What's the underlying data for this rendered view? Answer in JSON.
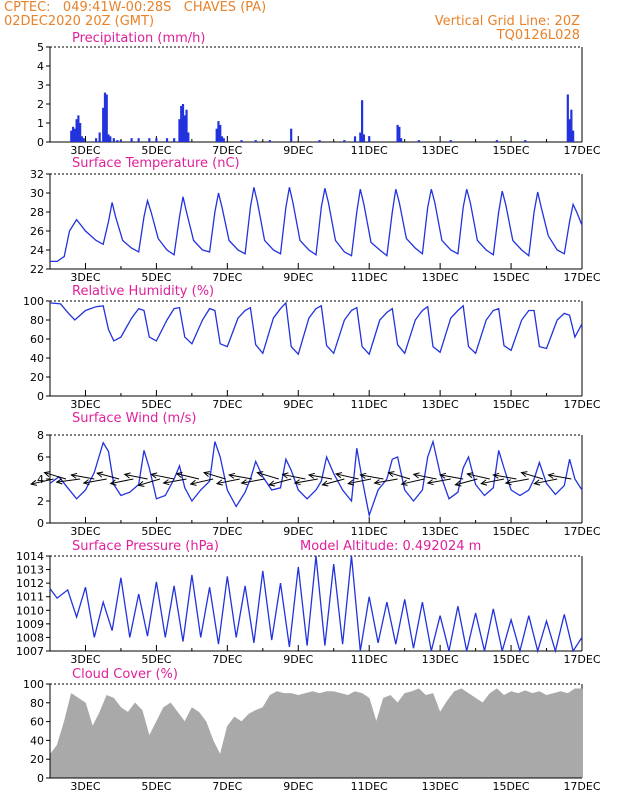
{
  "header": {
    "line1_left": "CPTEC:   049:41W-00:28S   CHAVES (PA)",
    "line2_left": "02DEC2020 20Z (GMT)",
    "line1_right": "Vertical Grid Line: 20Z",
    "line2_right": "TQ0126L028"
  },
  "colors": {
    "header": "#e8822a",
    "title": "#e0209a",
    "line": "#2233dd",
    "cloud": "#a9a9a9"
  },
  "chart_data": [
    {
      "type": "bar",
      "title": "Precipitation (mm/h)",
      "ylim": [
        0,
        5
      ],
      "yticks": [
        "0",
        "1",
        "2",
        "3",
        "4",
        "5"
      ],
      "xticks": [
        "3DEC",
        "5DEC",
        "7DEC",
        "9DEC",
        "11DEC",
        "13DEC",
        "15DEC",
        "17DEC"
      ],
      "x_day_range": [
        2.0,
        17.0
      ],
      "x": [
        2.6,
        2.65,
        2.7,
        2.75,
        2.8,
        2.85,
        2.9,
        2.95,
        3.3,
        3.4,
        3.5,
        3.55,
        3.6,
        3.65,
        3.7,
        3.8,
        3.9,
        4.0,
        4.3,
        4.5,
        4.8,
        5.0,
        5.3,
        5.5,
        5.65,
        5.7,
        5.75,
        5.8,
        5.85,
        5.9,
        6.7,
        6.75,
        6.8,
        6.85,
        6.9,
        7.4,
        7.8,
        8.2,
        8.8,
        9.6,
        10.3,
        10.6,
        10.75,
        10.8,
        10.85,
        11.0,
        11.8,
        11.85,
        11.9,
        12.4,
        13.3,
        14.6,
        15.4,
        16.6,
        16.65,
        16.7,
        16.75
      ],
      "values": [
        0.6,
        0.8,
        0.7,
        1.2,
        1.4,
        1.0,
        0.3,
        0.2,
        0.2,
        0.5,
        1.8,
        2.6,
        2.5,
        0.4,
        0.3,
        0.2,
        0.1,
        0.1,
        0.2,
        0.2,
        0.2,
        0.2,
        0.2,
        0.2,
        1.2,
        1.9,
        2.0,
        1.4,
        1.7,
        0.5,
        0.7,
        1.1,
        0.9,
        0.3,
        0.2,
        0.1,
        0.1,
        0.1,
        0.7,
        0.1,
        0.1,
        0.3,
        0.5,
        2.2,
        0.4,
        0.3,
        0.9,
        0.8,
        0.2,
        0.1,
        0.1,
        0.1,
        0.1,
        2.5,
        1.2,
        1.7,
        0.6
      ]
    },
    {
      "type": "line",
      "title": "Surface Temperature (nC)",
      "ylim": [
        22,
        32
      ],
      "yticks": [
        "22",
        "24",
        "26",
        "28",
        "30",
        "32"
      ],
      "xticks": [
        "3DEC",
        "5DEC",
        "7DEC",
        "9DEC",
        "11DEC",
        "13DEC",
        "15DEC",
        "17DEC"
      ],
      "x_day_range": [
        2.0,
        17.0
      ],
      "x": [
        2.0,
        2.2,
        2.4,
        2.55,
        2.75,
        3.0,
        3.3,
        3.5,
        3.65,
        3.75,
        3.85,
        4.05,
        4.3,
        4.5,
        4.65,
        4.75,
        4.85,
        5.05,
        5.3,
        5.5,
        5.65,
        5.75,
        5.85,
        6.05,
        6.3,
        6.5,
        6.65,
        6.75,
        6.85,
        7.05,
        7.3,
        7.5,
        7.65,
        7.75,
        7.85,
        8.05,
        8.3,
        8.5,
        8.65,
        8.75,
        8.85,
        9.05,
        9.3,
        9.5,
        9.65,
        9.75,
        9.85,
        10.05,
        10.3,
        10.5,
        10.65,
        10.75,
        10.85,
        11.05,
        11.3,
        11.5,
        11.65,
        11.75,
        11.85,
        12.05,
        12.3,
        12.5,
        12.65,
        12.75,
        12.85,
        13.05,
        13.3,
        13.5,
        13.65,
        13.75,
        13.85,
        14.05,
        14.3,
        14.5,
        14.65,
        14.75,
        14.85,
        15.05,
        15.3,
        15.5,
        15.65,
        15.75,
        15.85,
        16.05,
        16.3,
        16.5,
        16.65,
        16.75,
        16.85,
        17.0
      ],
      "values": [
        22.8,
        22.8,
        23.3,
        26.0,
        27.2,
        26.0,
        25.0,
        24.6,
        27.0,
        29.0,
        27.5,
        25.0,
        24.2,
        23.8,
        27.5,
        29.2,
        28.0,
        25.2,
        24.0,
        23.5,
        27.5,
        29.6,
        28.0,
        25.0,
        24.0,
        23.8,
        28.0,
        30.0,
        28.5,
        25.0,
        24.0,
        23.6,
        28.5,
        30.6,
        29.0,
        25.0,
        24.0,
        23.6,
        28.5,
        30.6,
        29.0,
        25.0,
        24.0,
        23.5,
        28.5,
        30.5,
        29.0,
        25.0,
        23.8,
        23.4,
        28.0,
        30.4,
        28.8,
        24.8,
        24.0,
        23.4,
        28.0,
        30.4,
        29.0,
        25.2,
        24.2,
        23.6,
        28.5,
        30.4,
        29.0,
        25.0,
        24.0,
        23.6,
        28.5,
        30.4,
        29.0,
        25.0,
        24.0,
        23.5,
        28.0,
        30.2,
        28.8,
        25.0,
        24.0,
        23.4,
        28.0,
        30.1,
        28.5,
        25.5,
        24.0,
        23.6,
        27.0,
        28.8,
        28.0,
        26.6
      ]
    },
    {
      "type": "line",
      "title": "Relative Humidity (%)",
      "ylim": [
        0,
        100
      ],
      "yticks": [
        "0",
        "20",
        "40",
        "60",
        "80",
        "100"
      ],
      "xticks": [
        "3DEC",
        "5DEC",
        "7DEC",
        "9DEC",
        "11DEC",
        "13DEC",
        "15DEC",
        "17DEC"
      ],
      "x_day_range": [
        2.0,
        17.0
      ],
      "x": [
        2.0,
        2.3,
        2.5,
        2.7,
        3.0,
        3.3,
        3.5,
        3.65,
        3.8,
        4.0,
        4.3,
        4.5,
        4.65,
        4.8,
        5.0,
        5.3,
        5.5,
        5.65,
        5.8,
        6.0,
        6.3,
        6.5,
        6.65,
        6.8,
        7.0,
        7.3,
        7.5,
        7.65,
        7.8,
        8.0,
        8.3,
        8.5,
        8.65,
        8.8,
        9.0,
        9.3,
        9.5,
        9.65,
        9.8,
        10.0,
        10.3,
        10.5,
        10.65,
        10.8,
        11.0,
        11.3,
        11.5,
        11.65,
        11.8,
        12.0,
        12.3,
        12.5,
        12.65,
        12.8,
        13.0,
        13.3,
        13.5,
        13.65,
        13.8,
        14.0,
        14.3,
        14.5,
        14.65,
        14.8,
        15.0,
        15.3,
        15.5,
        15.65,
        15.8,
        16.0,
        16.3,
        16.5,
        16.65,
        16.8,
        17.0
      ],
      "values": [
        98,
        97,
        88,
        80,
        90,
        94,
        95,
        70,
        58,
        62,
        82,
        92,
        90,
        62,
        58,
        80,
        92,
        93,
        62,
        55,
        80,
        92,
        90,
        55,
        52,
        82,
        90,
        93,
        54,
        45,
        82,
        92,
        98,
        52,
        44,
        82,
        92,
        95,
        53,
        45,
        80,
        90,
        93,
        52,
        44,
        80,
        88,
        92,
        54,
        45,
        80,
        90,
        94,
        52,
        46,
        82,
        90,
        95,
        52,
        45,
        80,
        90,
        92,
        53,
        48,
        80,
        90,
        90,
        52,
        50,
        80,
        87,
        85,
        62,
        76
      ]
    },
    {
      "type": "line",
      "title": "Surface Wind (m/s)",
      "ylim": [
        0,
        8
      ],
      "yticks": [
        "0",
        "2",
        "4",
        "6",
        "8"
      ],
      "xticks": [
        "3DEC",
        "5DEC",
        "7DEC",
        "9DEC",
        "11DEC",
        "13DEC",
        "15DEC",
        "17DEC"
      ],
      "x_day_range": [
        2.0,
        17.0
      ],
      "x": [
        2.0,
        2.25,
        2.5,
        2.75,
        3.0,
        3.25,
        3.5,
        3.65,
        3.8,
        4.0,
        4.25,
        4.5,
        4.65,
        4.8,
        5.0,
        5.25,
        5.5,
        5.65,
        5.8,
        6.0,
        6.25,
        6.5,
        6.65,
        6.8,
        7.0,
        7.25,
        7.5,
        7.65,
        7.8,
        8.0,
        8.25,
        8.5,
        8.65,
        8.8,
        9.0,
        9.25,
        9.5,
        9.65,
        9.8,
        10.0,
        10.25,
        10.5,
        10.65,
        10.8,
        11.0,
        11.25,
        11.5,
        11.65,
        11.8,
        12.0,
        12.25,
        12.5,
        12.65,
        12.8,
        13.0,
        13.25,
        13.5,
        13.65,
        13.8,
        14.0,
        14.25,
        14.5,
        14.65,
        14.8,
        15.0,
        15.25,
        15.5,
        15.65,
        15.8,
        16.0,
        16.25,
        16.5,
        16.65,
        16.8,
        17.0
      ],
      "values": [
        3.6,
        4.2,
        3.2,
        2.2,
        3.0,
        4.6,
        7.3,
        6.5,
        3.5,
        2.5,
        2.8,
        3.5,
        6.6,
        5.0,
        2.2,
        2.5,
        4.0,
        5.2,
        3.2,
        2.0,
        3.0,
        3.8,
        7.4,
        6.0,
        3.0,
        1.5,
        2.8,
        4.0,
        5.6,
        4.2,
        3.0,
        3.2,
        5.8,
        4.8,
        3.0,
        2.2,
        3.0,
        3.8,
        6.0,
        4.5,
        3.0,
        2.0,
        6.8,
        4.0,
        0.7,
        3.0,
        4.0,
        5.8,
        6.0,
        3.0,
        2.0,
        3.0,
        6.0,
        7.4,
        4.5,
        2.2,
        2.8,
        5.0,
        6.0,
        3.5,
        2.5,
        3.2,
        6.6,
        5.0,
        3.0,
        2.5,
        3.0,
        4.0,
        5.5,
        3.6,
        2.6,
        3.4,
        5.8,
        4.0,
        3.0
      ],
      "wind_arrows": {
        "comment_free": true,
        "x": [
          2.1,
          2.45,
          2.85,
          3.25,
          3.6,
          3.95,
          4.35,
          4.75,
          5.1,
          5.5,
          5.85,
          6.2,
          6.6,
          6.95,
          7.35,
          7.7,
          8.05,
          8.45,
          8.8,
          9.2,
          9.55,
          9.95,
          10.3,
          10.7,
          11.05,
          11.4,
          11.8,
          12.15,
          12.55,
          12.9,
          13.3,
          13.65,
          14.05,
          14.4,
          14.8,
          15.15,
          15.5,
          15.9,
          16.3,
          16.7
        ],
        "u": [
          -0.8,
          -0.8,
          -0.9,
          -1.0,
          -1.0,
          -0.9,
          -0.9,
          -0.9,
          -0.8,
          -0.9,
          -1.0,
          -1.0,
          -0.8,
          -0.8,
          -0.9,
          -1.0,
          -1.0,
          -0.8,
          -0.9,
          -0.9,
          -1.0,
          -1.0,
          -0.9,
          -0.8,
          -0.9,
          -1.0,
          -1.0,
          -0.8,
          -0.8,
          -0.9,
          -1.0,
          -1.0,
          -0.9,
          -0.8,
          -0.9,
          -1.0,
          -1.0,
          -0.8,
          -0.9,
          -1.0
        ],
        "v": [
          -0.3,
          0.4,
          -0.2,
          0.3,
          -0.3,
          0.4,
          -0.3,
          0.3,
          -0.4,
          0.3,
          -0.3,
          0.4,
          -0.3,
          0.4,
          -0.3,
          0.3,
          -0.3,
          0.4,
          -0.4,
          0.3,
          -0.3,
          0.3,
          -0.4,
          0.3,
          -0.3,
          0.3,
          -0.3,
          0.4,
          -0.3,
          0.3,
          -0.3,
          0.3,
          -0.4,
          0.3,
          -0.3,
          0.3,
          -0.3,
          0.4,
          -0.3,
          0.3
        ]
      }
    },
    {
      "type": "line",
      "title": "Surface Pressure (hPa)",
      "annotation": "Model Altitude: 0.492024 m",
      "ylim": [
        1007,
        1014
      ],
      "yticks": [
        "1007",
        "1008",
        "1009",
        "1010",
        "1011",
        "1012",
        "1013",
        "1014"
      ],
      "xticks": [
        "3DEC",
        "5DEC",
        "7DEC",
        "9DEC",
        "11DEC",
        "13DEC",
        "15DEC",
        "17DEC"
      ],
      "x_day_range": [
        2.0,
        17.0
      ],
      "x": [
        2.0,
        2.2,
        2.5,
        2.75,
        3.0,
        3.25,
        3.5,
        3.75,
        4.0,
        4.25,
        4.5,
        4.75,
        5.0,
        5.25,
        5.5,
        5.75,
        6.0,
        6.25,
        6.5,
        6.75,
        7.0,
        7.25,
        7.5,
        7.75,
        8.0,
        8.25,
        8.5,
        8.75,
        9.0,
        9.25,
        9.5,
        9.75,
        10.0,
        10.25,
        10.5,
        10.75,
        11.0,
        11.25,
        11.5,
        11.75,
        12.0,
        12.25,
        12.5,
        12.75,
        13.0,
        13.25,
        13.5,
        13.75,
        14.0,
        14.25,
        14.5,
        14.75,
        15.0,
        15.25,
        15.5,
        15.75,
        16.0,
        16.25,
        16.5,
        16.75,
        17.0
      ],
      "values": [
        1011.6,
        1010.9,
        1011.5,
        1009.5,
        1011.7,
        1008.0,
        1010.6,
        1008.5,
        1012.4,
        1008.0,
        1011.2,
        1008.1,
        1012.1,
        1008.0,
        1011.8,
        1007.7,
        1012.6,
        1008.0,
        1011.7,
        1007.5,
        1012.5,
        1008.0,
        1011.8,
        1007.6,
        1012.9,
        1007.8,
        1012.0,
        1007.3,
        1013.2,
        1007.4,
        1014.0,
        1007.4,
        1013.4,
        1007.5,
        1014.2,
        1007.0,
        1011.0,
        1007.6,
        1010.6,
        1007.5,
        1010.8,
        1007.2,
        1010.6,
        1007.0,
        1009.6,
        1007.0,
        1010.3,
        1007.0,
        1009.8,
        1007.0,
        1010.1,
        1007.0,
        1009.3,
        1007.0,
        1009.6,
        1007.0,
        1009.2,
        1007.0,
        1009.7,
        1007.0,
        1008.0
      ]
    },
    {
      "type": "area",
      "title": "Cloud Cover (%)",
      "ylim": [
        0,
        100
      ],
      "yticks": [
        "0",
        "20",
        "40",
        "60",
        "80",
        "100"
      ],
      "xticks": [
        "3DEC",
        "5DEC",
        "7DEC",
        "9DEC",
        "11DEC",
        "13DEC",
        "15DEC",
        "17DEC"
      ],
      "x_day_range": [
        2.0,
        17.0
      ],
      "x": [
        2.0,
        2.2,
        2.4,
        2.6,
        2.8,
        3.0,
        3.2,
        3.4,
        3.6,
        3.8,
        4.0,
        4.2,
        4.4,
        4.6,
        4.8,
        5.0,
        5.2,
        5.4,
        5.6,
        5.8,
        6.0,
        6.2,
        6.4,
        6.6,
        6.8,
        7.0,
        7.2,
        7.4,
        7.6,
        7.8,
        8.0,
        8.2,
        8.4,
        8.6,
        8.8,
        9.0,
        9.2,
        9.4,
        9.6,
        9.8,
        10.0,
        10.2,
        10.4,
        10.6,
        10.8,
        11.0,
        11.2,
        11.4,
        11.6,
        11.8,
        12.0,
        12.2,
        12.4,
        12.6,
        12.8,
        13.0,
        13.2,
        13.4,
        13.6,
        13.8,
        14.0,
        14.2,
        14.4,
        14.6,
        14.8,
        15.0,
        15.2,
        15.4,
        15.6,
        15.8,
        16.0,
        16.2,
        16.4,
        16.6,
        16.8,
        17.0
      ],
      "values": [
        25,
        35,
        60,
        90,
        85,
        80,
        55,
        70,
        88,
        85,
        75,
        70,
        80,
        72,
        45,
        60,
        75,
        80,
        70,
        60,
        75,
        70,
        60,
        40,
        25,
        55,
        65,
        60,
        68,
        72,
        75,
        88,
        92,
        90,
        90,
        88,
        90,
        92,
        90,
        92,
        92,
        90,
        88,
        92,
        90,
        85,
        60,
        85,
        88,
        80,
        90,
        92,
        95,
        88,
        90,
        70,
        82,
        92,
        95,
        90,
        85,
        80,
        90,
        95,
        88,
        92,
        90,
        93,
        90,
        92,
        88,
        90,
        92,
        90,
        95,
        95
      ]
    }
  ]
}
